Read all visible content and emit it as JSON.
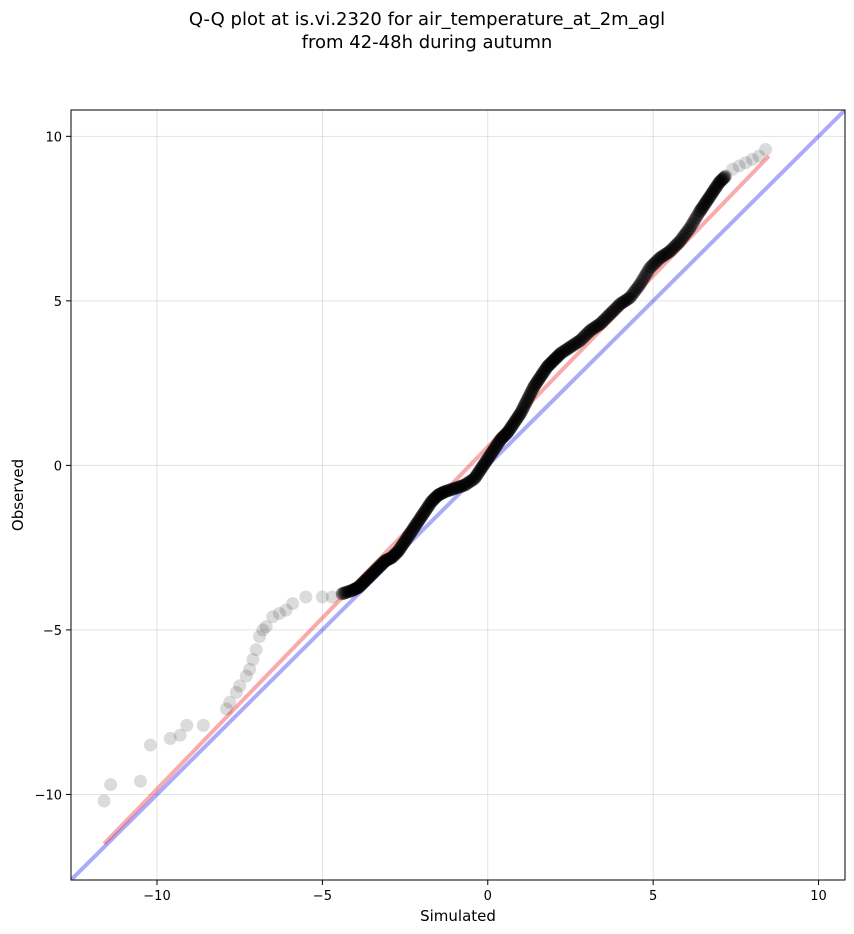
{
  "chart_data": {
    "type": "scatter",
    "title_line1": "Q-Q plot at is.vi.2320 for air_temperature_at_2m_agl",
    "title_line2": "from 42-48h during autumn",
    "xlabel": "Simulated",
    "ylabel": "Observed",
    "xlim": [
      -12.6,
      10.8
    ],
    "ylim": [
      -12.6,
      10.8
    ],
    "xticks": [
      -10,
      -5,
      0,
      5,
      10
    ],
    "yticks": [
      -10,
      -5,
      0,
      5,
      10
    ],
    "tick_labels": [
      "−10",
      "−5",
      "0",
      "5",
      "10"
    ],
    "grid": true,
    "reference_line": {
      "name": "y = x",
      "color": "#0000ee",
      "from": [
        -12.6,
        -12.6
      ],
      "to": [
        10.8,
        10.8
      ]
    },
    "fit_line": {
      "color": "#ee2222",
      "from": [
        -11.6,
        -11.5
      ],
      "to": [
        8.5,
        9.4
      ]
    },
    "points": {
      "color": "#000000",
      "x": [
        -11.6,
        -11.4,
        -10.5,
        -10.2,
        -9.6,
        -9.3,
        -9.1,
        -8.6,
        -7.9,
        -7.8,
        -7.6,
        -7.5,
        -7.3,
        -7.2,
        -7.1,
        -7.0,
        -6.9,
        -6.8,
        -6.7,
        -6.5,
        -6.3,
        -6.1,
        -5.9,
        -5.5,
        -5.0,
        -4.7,
        -4.4,
        -4.1,
        -3.9,
        -3.7,
        -3.5,
        -3.3,
        -3.1,
        -2.9,
        -2.7,
        -2.5,
        -2.3,
        -2.1,
        -1.9,
        -1.7,
        -1.5,
        -1.3,
        -1.0,
        -0.7,
        -0.4,
        -0.2,
        0.0,
        0.2,
        0.4,
        0.6,
        0.8,
        1.0,
        1.2,
        1.4,
        1.6,
        1.8,
        2.0,
        2.2,
        2.5,
        2.8,
        3.1,
        3.4,
        3.7,
        4.0,
        4.3,
        4.6,
        4.9,
        5.2,
        5.5,
        5.8,
        6.1,
        6.4,
        6.6,
        6.8,
        7.0,
        7.2,
        7.4,
        7.6,
        7.8,
        8.0,
        8.2,
        8.4
      ],
      "y": [
        -10.2,
        -9.7,
        -9.6,
        -8.5,
        -8.3,
        -8.2,
        -7.9,
        -7.9,
        -7.4,
        -7.2,
        -6.9,
        -6.7,
        -6.4,
        -6.2,
        -5.9,
        -5.6,
        -5.2,
        -5.0,
        -4.9,
        -4.6,
        -4.5,
        -4.4,
        -4.2,
        -4.0,
        -4.0,
        -4.0,
        -3.9,
        -3.8,
        -3.7,
        -3.5,
        -3.3,
        -3.1,
        -2.9,
        -2.8,
        -2.6,
        -2.3,
        -2.0,
        -1.7,
        -1.4,
        -1.1,
        -0.9,
        -0.8,
        -0.7,
        -0.6,
        -0.4,
        -0.1,
        0.2,
        0.5,
        0.8,
        1.0,
        1.3,
        1.6,
        2.0,
        2.4,
        2.7,
        3.0,
        3.2,
        3.4,
        3.6,
        3.8,
        4.1,
        4.3,
        4.6,
        4.9,
        5.1,
        5.5,
        6.0,
        6.3,
        6.5,
        6.8,
        7.2,
        7.7,
        8.0,
        8.3,
        8.6,
        8.8,
        9.0,
        9.1,
        9.2,
        9.3,
        9.4,
        9.6
      ]
    }
  }
}
